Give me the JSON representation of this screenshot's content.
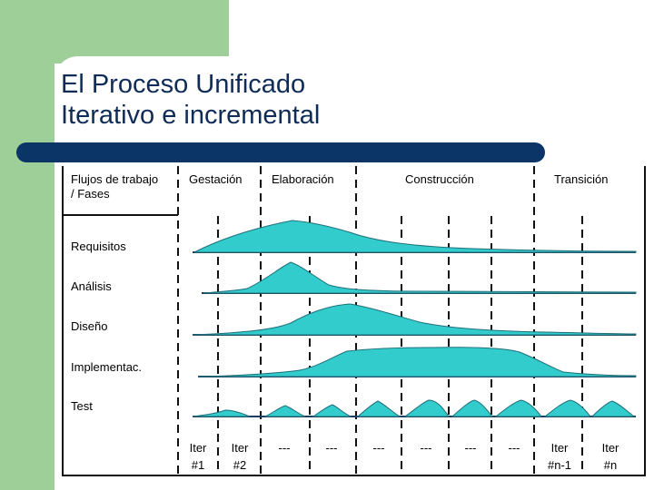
{
  "slide": {
    "title_line1": "El Proceso Unificado",
    "title_line2": "Iterativo e incremental"
  },
  "diagram": {
    "corner_line1": "Flujos de trabajo",
    "corner_line2": "/ Fases",
    "phases": [
      "Gestación",
      "Elaboración",
      "Construcción",
      "Transición"
    ],
    "workflows": [
      "Requisitos",
      "Análisis",
      "Diseño",
      "Implementac.",
      "Test"
    ],
    "iterations": [
      {
        "line1": "Iter",
        "line2": "#1"
      },
      {
        "line1": "Iter",
        "line2": "#2"
      },
      {
        "line1": "---",
        "line2": ""
      },
      {
        "line1": "---",
        "line2": ""
      },
      {
        "line1": "---",
        "line2": ""
      },
      {
        "line1": "---",
        "line2": ""
      },
      {
        "line1": "---",
        "line2": ""
      },
      {
        "line1": "---",
        "line2": ""
      },
      {
        "line1": "Iter",
        "line2": "#n-1"
      },
      {
        "line1": "Iter",
        "line2": "#n"
      }
    ]
  },
  "colors": {
    "curve_fill": "#33cccc",
    "title_text": "#0f2b58",
    "accent_bar": "#0b3566",
    "background_green": "#9ecf98"
  }
}
